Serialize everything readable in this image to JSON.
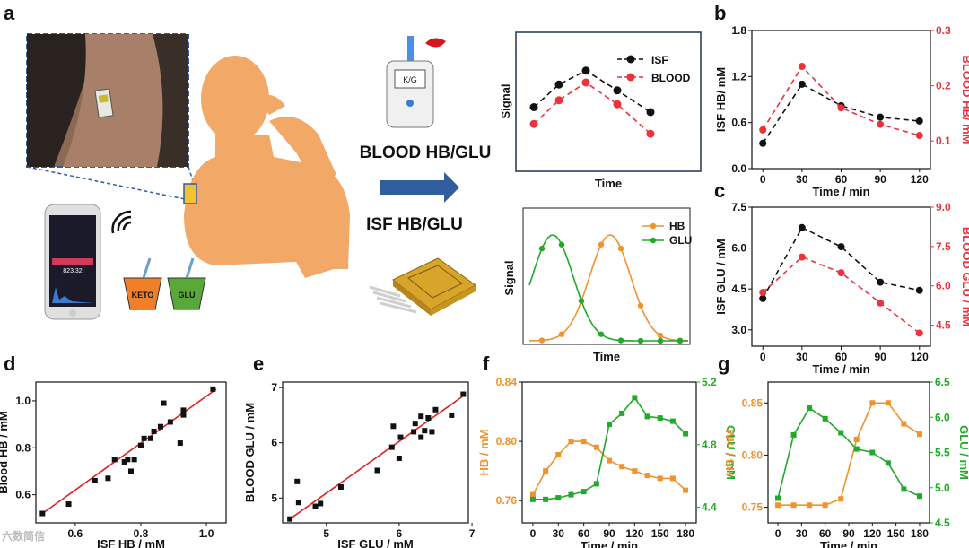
{
  "colors": {
    "black": "#111111",
    "red": "#e8343c",
    "orange": "#f0922e",
    "green": "#22a82a",
    "blue": "#2f5d9e",
    "skin": "#f2a867",
    "fit": "#e02020"
  },
  "panel_labels": {
    "a": "a",
    "b": "b",
    "c": "c",
    "d": "d",
    "e": "e",
    "f": "f",
    "g": "g"
  },
  "overview": {
    "blood_label": "BLOOD HB/GLU",
    "isf_label": "ISF HB/GLU",
    "meter_display": "K/G",
    "cup_keto": "KETO",
    "cup_glu": "GLU",
    "phone_value": "823.32",
    "watermark": "六数简信"
  },
  "chart_data": [
    {
      "id": "schematic-top",
      "type": "line",
      "xlabel": "Time",
      "ylabel": "Signal",
      "series": [
        {
          "name": "ISF",
          "values": [
            0.55,
            0.78,
            0.92,
            0.72,
            0.5
          ]
        },
        {
          "name": "BLOOD",
          "values": [
            0.38,
            0.62,
            0.8,
            0.58,
            0.28
          ]
        }
      ]
    },
    {
      "id": "schematic-bottom",
      "type": "line",
      "xlabel": "Time",
      "ylabel": "Signal",
      "series": [
        {
          "name": "HB",
          "values": [
            0,
            0.02,
            0.15,
            0.65,
            0.95,
            0.7,
            0.3,
            0.05
          ]
        },
        {
          "name": "GLU",
          "values": [
            0.05,
            0.6,
            0.96,
            0.7,
            0.3,
            0.06,
            0.01,
            0
          ]
        }
      ]
    },
    {
      "id": "b",
      "type": "line",
      "xlabel": "Time / min",
      "ylabel": "ISF HB/ mM",
      "y2label": "BLOOD HB/ mM",
      "x": [
        0,
        30,
        60,
        90,
        120
      ],
      "xticks": [
        "0",
        "30",
        "60",
        "90",
        "120"
      ],
      "ylim": [
        0,
        1.8
      ],
      "yticks": [
        "0.0",
        "0.6",
        "1.2",
        "1.8"
      ],
      "y2lim": [
        0.05,
        0.3
      ],
      "y2ticks": [
        "0.1",
        "0.2",
        "0.3"
      ],
      "series": [
        {
          "name": "ISF HB",
          "axis": "left",
          "values": [
            0.33,
            1.1,
            0.82,
            0.67,
            0.62
          ]
        },
        {
          "name": "BLOOD HB",
          "axis": "right",
          "values": [
            0.12,
            0.235,
            0.16,
            0.13,
            0.11
          ]
        }
      ]
    },
    {
      "id": "c",
      "type": "line",
      "xlabel": "Time / min",
      "ylabel": "ISF GLU / mM",
      "y2label": "BLOOD GLU / mM",
      "x": [
        0,
        30,
        60,
        90,
        120
      ],
      "xticks": [
        "0",
        "30",
        "60",
        "90",
        "120"
      ],
      "ylim": [
        2.4,
        7.5
      ],
      "yticks": [
        "3.0",
        "4.5",
        "6.0",
        "7.5"
      ],
      "y2lim": [
        3.7,
        9.0
      ],
      "y2ticks": [
        "4.5",
        "6.0",
        "7.5",
        "9.0"
      ],
      "series": [
        {
          "name": "ISF GLU",
          "axis": "left",
          "values": [
            4.15,
            6.75,
            6.05,
            4.75,
            4.45
          ]
        },
        {
          "name": "BLOOD GLU",
          "axis": "right",
          "values": [
            5.75,
            7.1,
            6.5,
            5.35,
            4.2
          ]
        }
      ]
    },
    {
      "id": "d",
      "type": "scatter",
      "xlabel": "ISF HB / mM",
      "ylabel": "Blood HB / mM",
      "xlim": [
        0.48,
        1.06
      ],
      "xticks": [
        "0.6",
        "0.8",
        "1.0"
      ],
      "ylim": [
        0.48,
        1.08
      ],
      "yticks": [
        "0.6",
        "0.8",
        "1.0"
      ],
      "points": [
        [
          0.5,
          0.52
        ],
        [
          0.58,
          0.56
        ],
        [
          0.66,
          0.66
        ],
        [
          0.7,
          0.67
        ],
        [
          0.72,
          0.75
        ],
        [
          0.75,
          0.74
        ],
        [
          0.76,
          0.75
        ],
        [
          0.77,
          0.7
        ],
        [
          0.78,
          0.75
        ],
        [
          0.8,
          0.81
        ],
        [
          0.81,
          0.84
        ],
        [
          0.83,
          0.84
        ],
        [
          0.84,
          0.87
        ],
        [
          0.86,
          0.89
        ],
        [
          0.87,
          0.99
        ],
        [
          0.89,
          0.91
        ],
        [
          0.92,
          0.82
        ],
        [
          0.93,
          0.96
        ],
        [
          0.93,
          0.94
        ],
        [
          1.02,
          1.05
        ]
      ],
      "fit": [
        [
          0.5,
          0.52
        ],
        [
          1.03,
          1.05
        ]
      ]
    },
    {
      "id": "e",
      "type": "scatter",
      "xlabel": "ISF GLU / mM",
      "ylabel": "BLOOD GLU / mM",
      "xlim": [
        4.4,
        6.95
      ],
      "xticks": [
        "5",
        "6",
        "7"
      ],
      "ylim": [
        4.55,
        7.1
      ],
      "yticks": [
        "5",
        "6",
        "7"
      ],
      "points": [
        [
          4.5,
          4.62
        ],
        [
          4.6,
          5.3
        ],
        [
          4.62,
          4.92
        ],
        [
          4.85,
          4.85
        ],
        [
          4.92,
          4.9
        ],
        [
          5.2,
          5.2
        ],
        [
          5.7,
          5.5
        ],
        [
          5.9,
          5.92
        ],
        [
          5.92,
          6.3
        ],
        [
          6.0,
          5.72
        ],
        [
          6.02,
          6.1
        ],
        [
          6.2,
          6.2
        ],
        [
          6.22,
          6.35
        ],
        [
          6.3,
          6.1
        ],
        [
          6.3,
          6.48
        ],
        [
          6.35,
          6.22
        ],
        [
          6.4,
          6.45
        ],
        [
          6.45,
          6.2
        ],
        [
          6.5,
          6.6
        ],
        [
          6.72,
          6.5
        ],
        [
          6.88,
          6.88
        ]
      ],
      "fit": [
        [
          4.5,
          4.62
        ],
        [
          6.88,
          6.85
        ]
      ]
    },
    {
      "id": "f",
      "type": "line",
      "xlabel": "Time / min",
      "ylabel": "HB / mM",
      "y2label": "GLU / mM",
      "x": [
        0,
        15,
        30,
        45,
        60,
        75,
        90,
        105,
        120,
        135,
        150,
        165,
        180
      ],
      "xticks": [
        "0",
        "30",
        "60",
        "90",
        "120",
        "150",
        "180"
      ],
      "ylim": [
        0.745,
        0.84
      ],
      "yticks": [
        "0.76",
        "0.80",
        "0.84"
      ],
      "y2lim": [
        4.3,
        5.2
      ],
      "y2ticks": [
        "4.4",
        "4.8",
        "5.2"
      ],
      "series": [
        {
          "name": "HB",
          "axis": "left",
          "values": [
            0.764,
            0.78,
            0.791,
            0.8,
            0.8,
            0.796,
            0.787,
            0.783,
            0.78,
            0.777,
            0.775,
            0.775,
            0.767
          ]
        },
        {
          "name": "GLU",
          "axis": "right",
          "values": [
            4.45,
            4.45,
            4.46,
            4.48,
            4.5,
            4.55,
            4.93,
            5.0,
            5.1,
            4.98,
            4.97,
            4.95,
            4.87
          ]
        }
      ]
    },
    {
      "id": "g",
      "type": "line",
      "xlabel": "Time / min",
      "ylabel": "HB / mM",
      "y2label": "GLU / mM",
      "x": [
        0,
        20,
        40,
        60,
        80,
        100,
        120,
        140,
        160,
        180
      ],
      "xticks": [
        "0",
        "30",
        "60",
        "90",
        "120",
        "150",
        "180"
      ],
      "ylim": [
        0.735,
        0.87
      ],
      "yticks": [
        "0.75",
        "0.80",
        "0.85"
      ],
      "y2lim": [
        4.5,
        6.5
      ],
      "y2ticks": [
        "4.5",
        "5.0",
        "5.5",
        "6.0",
        "6.5"
      ],
      "series": [
        {
          "name": "HB",
          "axis": "left",
          "values": [
            0.752,
            0.752,
            0.752,
            0.752,
            0.758,
            0.815,
            0.85,
            0.85,
            0.83,
            0.82
          ]
        },
        {
          "name": "GLU",
          "axis": "right",
          "values": [
            4.85,
            5.75,
            6.13,
            5.98,
            5.78,
            5.55,
            5.5,
            5.35,
            4.98,
            4.88
          ]
        }
      ]
    }
  ]
}
